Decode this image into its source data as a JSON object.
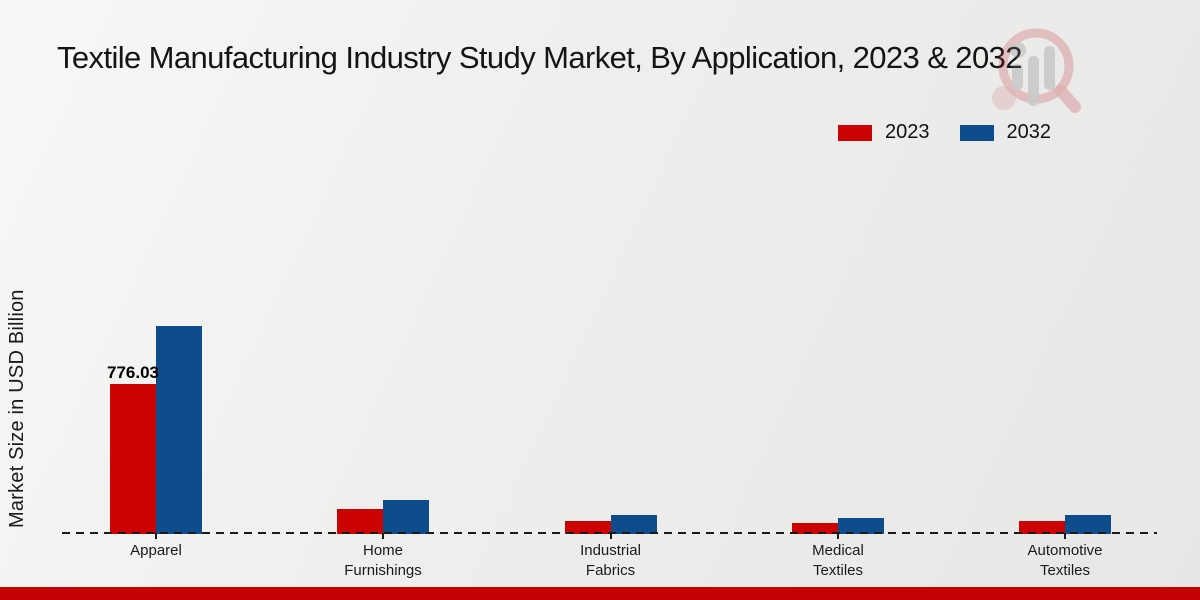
{
  "title": "Textile Manufacturing Industry Study Market, By Application, 2023 & 2032",
  "ylabel": "Market Size in USD Billion",
  "colors": {
    "series_2023": "#cc0303",
    "series_2032": "#0e4d8c",
    "footer_strip": "#c40404",
    "axis": "#1a1a1a"
  },
  "logo": {
    "name": "magnifier-bar-chart-logo-watermark"
  },
  "chart_data": {
    "type": "bar",
    "title": "Textile Manufacturing Industry Study Market, By Application, 2023 & 2032",
    "xlabel": "",
    "ylabel": "Market Size in USD Billion",
    "categories": [
      "Apparel",
      "Home Furnishings",
      "Industrial Fabrics",
      "Medical Textiles",
      "Automotive Textiles"
    ],
    "series": [
      {
        "name": "2023",
        "color": "#cc0303",
        "values": [
          776.03,
          130,
          67,
          58,
          67
        ]
      },
      {
        "name": "2032",
        "color": "#0e4d8c",
        "values": [
          1075,
          175,
          98,
          84,
          96
        ]
      }
    ],
    "point_labels": [
      {
        "series": "2023",
        "category": "Apparel",
        "text": "776.03"
      }
    ],
    "ylim": [
      0,
      1200
    ],
    "grid": false,
    "legend_position": "top-right",
    "baseline_style": "dashed"
  }
}
